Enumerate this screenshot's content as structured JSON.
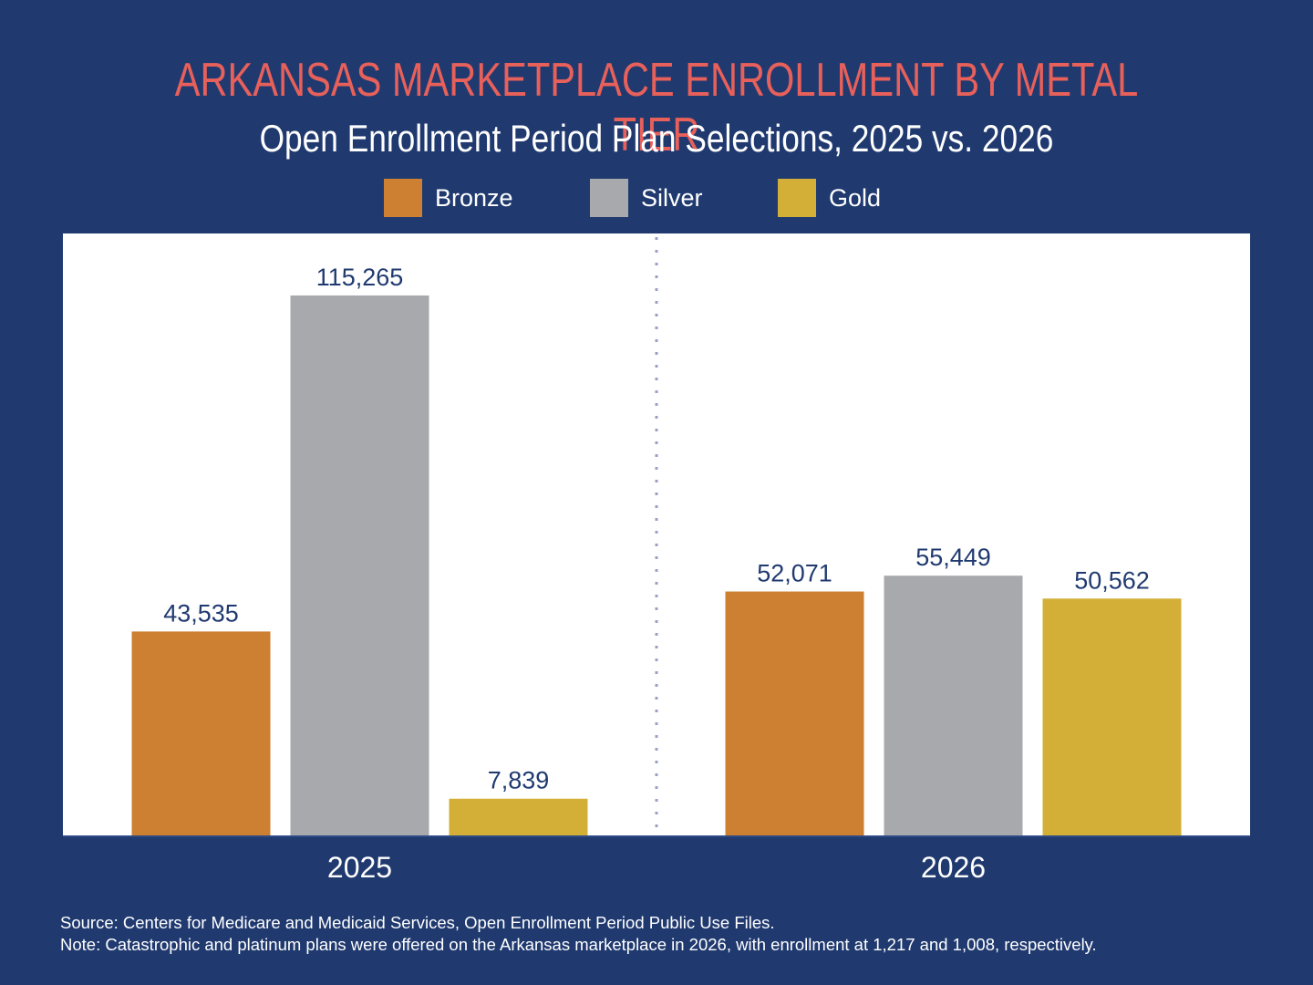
{
  "colors": {
    "background": "#203a70",
    "title": "#e8605a",
    "text": "#ffffff",
    "data_label": "#203a70",
    "plot_bg": "#ffffff",
    "divider": "#9a9fc4",
    "Bronze": "#cd7f32",
    "Silver": "#a8a9ad",
    "Gold": "#d4af37"
  },
  "chart_data": {
    "type": "bar",
    "title": "ARKANSAS MARKETPLACE ENROLLMENT BY METAL TIER",
    "subtitle": "Open Enrollment Period Plan Selections, 2025 vs. 2026",
    "xlabel": "",
    "ylabel": "",
    "categories": [
      "2025",
      "2026"
    ],
    "series": [
      {
        "name": "Bronze",
        "values": [
          43535,
          52071
        ],
        "labels": [
          "43,535",
          "52,071"
        ]
      },
      {
        "name": "Silver",
        "values": [
          115265,
          55449
        ],
        "labels": [
          "115,265",
          "55,449"
        ]
      },
      {
        "name": "Gold",
        "values": [
          7839,
          50562
        ],
        "labels": [
          "7,839",
          "50,562"
        ]
      }
    ],
    "ylim": [
      0,
      128500
    ],
    "grid": false,
    "y_axis_visible": false,
    "legend_position": "top-center",
    "divider_between_categories": "dotted"
  },
  "footer": {
    "source": "Source: Centers for Medicare and Medicaid Services, Open Enrollment Period Public Use Files.",
    "note": "Note: Catastrophic and platinum plans were offered on the Arkansas marketplace in 2026, with enrollment at 1,217 and 1,008, respectively."
  }
}
